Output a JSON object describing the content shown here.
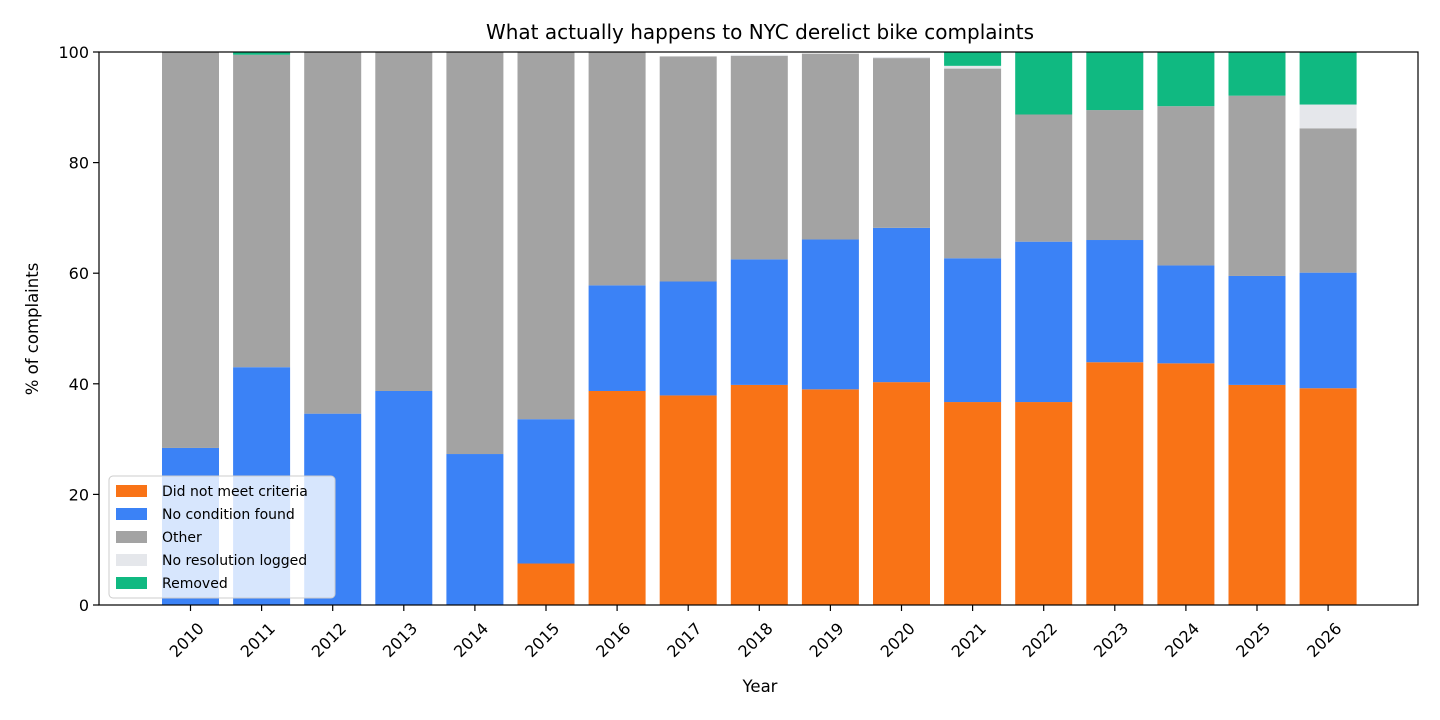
{
  "chart_data": {
    "type": "bar",
    "stacked": true,
    "title": "What actually happens to NYC derelict bike complaints",
    "xlabel": "Year",
    "ylabel": "% of complaints",
    "ylim": [
      0,
      100
    ],
    "yticks": [
      0,
      20,
      40,
      60,
      80,
      100
    ],
    "grid": false,
    "legend_position": "lower-left",
    "categories": [
      "2010",
      "2011",
      "2012",
      "2013",
      "2014",
      "2015",
      "2016",
      "2017",
      "2018",
      "2019",
      "2020",
      "2021",
      "2022",
      "2023",
      "2024",
      "2025",
      "2026"
    ],
    "series": [
      {
        "name": "Did not meet criteria",
        "color": "#f97316",
        "values": [
          0,
          0,
          0,
          0,
          0,
          7.5,
          38.7,
          37.9,
          39.8,
          39.0,
          40.3,
          36.7,
          36.7,
          43.9,
          43.7,
          39.8,
          39.2
        ]
      },
      {
        "name": "No condition found",
        "color": "#3b82f6",
        "values": [
          28.4,
          43.0,
          34.6,
          38.7,
          27.3,
          26.1,
          19.1,
          20.6,
          22.7,
          27.1,
          27.9,
          26.0,
          29.0,
          22.1,
          17.7,
          19.7,
          20.9
        ]
      },
      {
        "name": "Other",
        "color": "#a3a3a3",
        "values": [
          71.6,
          56.5,
          65.4,
          61.3,
          72.7,
          66.4,
          42.2,
          40.7,
          36.8,
          33.6,
          30.7,
          34.3,
          23.0,
          23.5,
          28.8,
          32.6,
          26.1
        ]
      },
      {
        "name": "No resolution logged",
        "color": "#e5e7eb",
        "values": [
          0,
          0,
          0,
          0,
          0,
          0,
          0,
          0,
          0.2,
          0,
          0.2,
          0.5,
          0,
          0,
          0,
          0,
          4.3
        ]
      },
      {
        "name": "Removed",
        "color": "#10b981",
        "values": [
          0,
          0.5,
          0,
          0,
          0,
          0,
          0,
          0,
          0,
          0,
          0,
          2.5,
          11.3,
          10.5,
          9.8,
          7.9,
          9.5
        ]
      }
    ]
  }
}
